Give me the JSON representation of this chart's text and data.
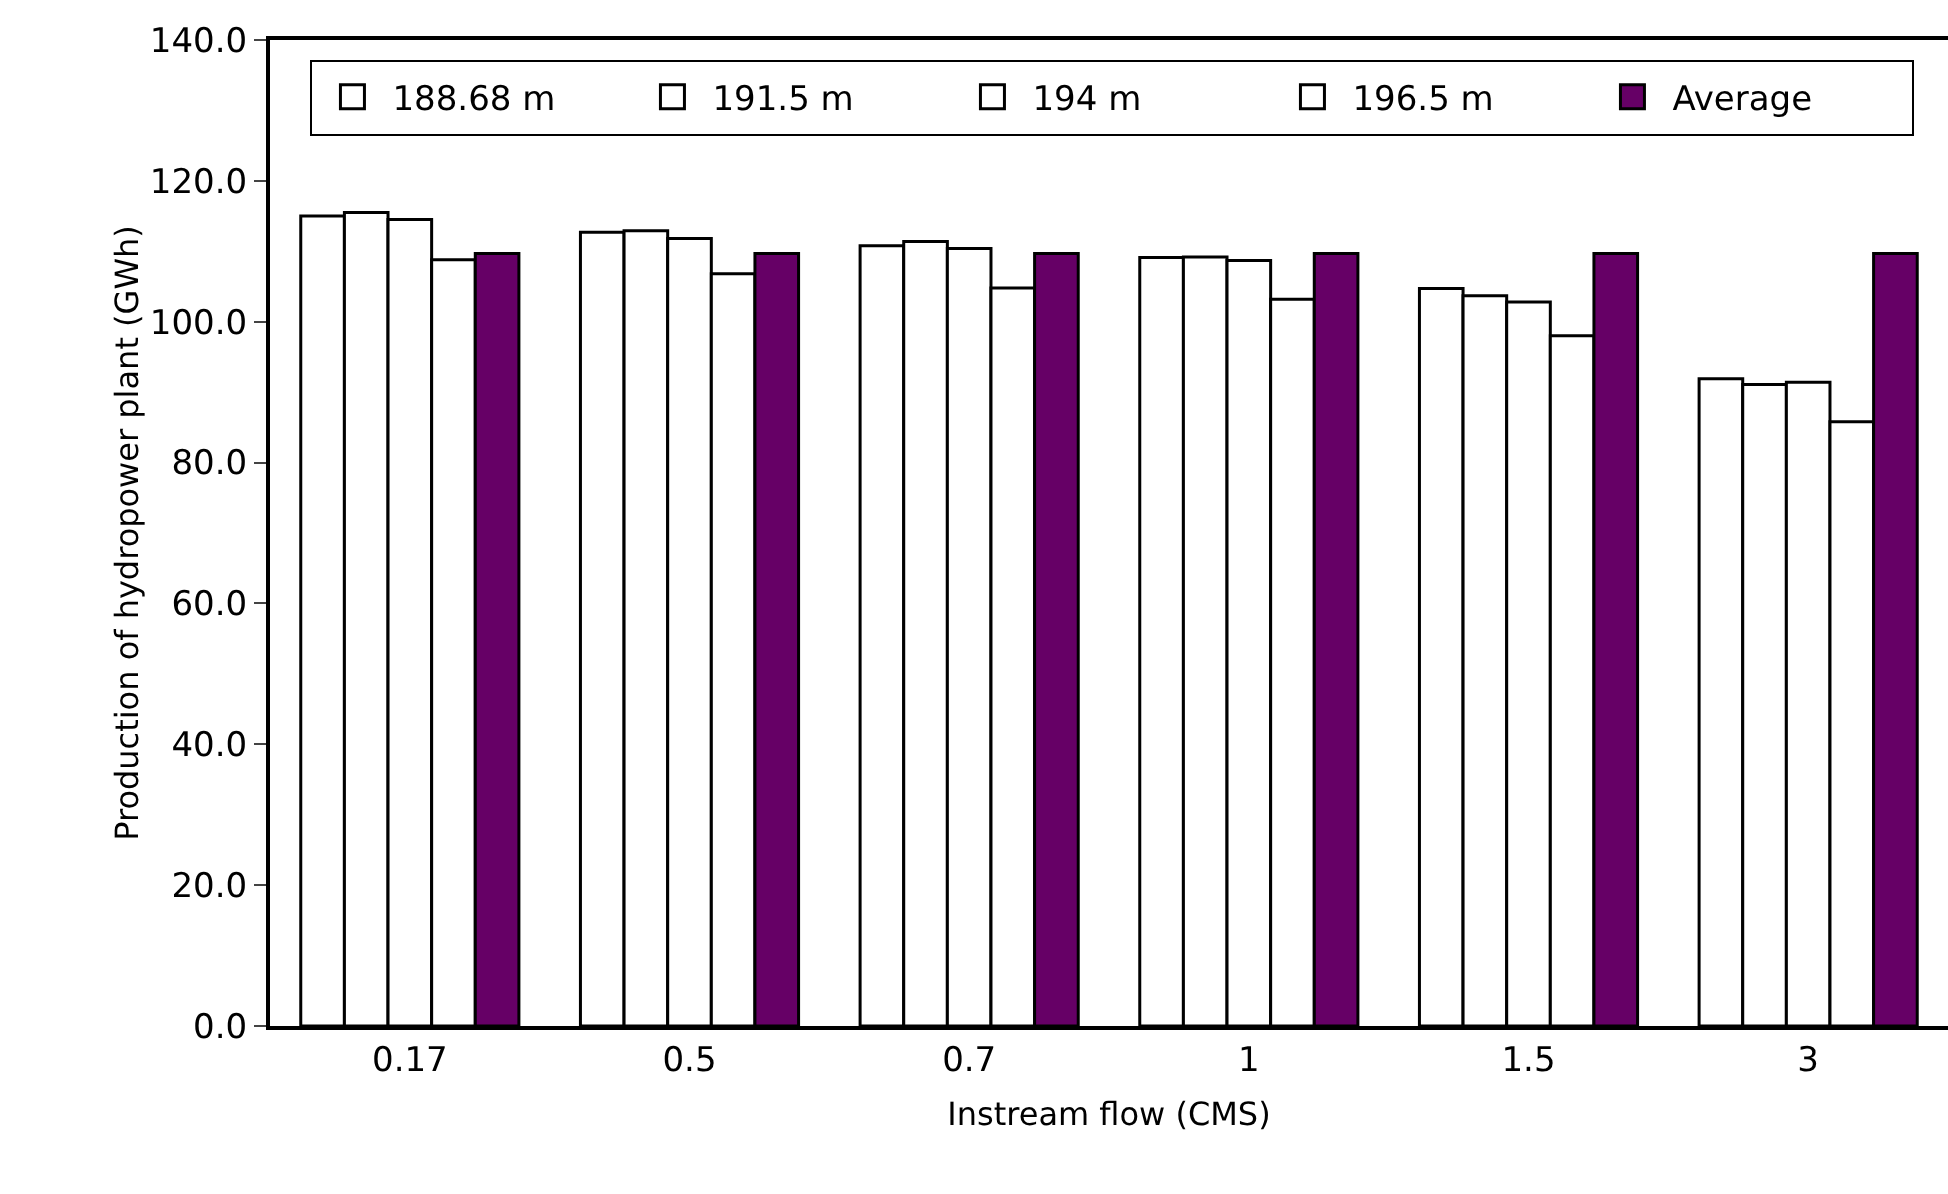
{
  "chart_data": {
    "type": "bar",
    "xlabel": "Instream flow (CMS)",
    "ylabel": "Production of hydropower plant (GWh)",
    "categories": [
      "0.17",
      "0.5",
      "0.7",
      "1",
      "1.5",
      "3"
    ],
    "series": [
      {
        "name": "188.68 m",
        "color": "#ffffff",
        "values": [
          115.0,
          112.7,
          110.8,
          109.1,
          104.7,
          91.9
        ]
      },
      {
        "name": "191.5 m",
        "color": "#ffffff",
        "values": [
          115.5,
          112.9,
          111.4,
          109.2,
          103.7,
          91.1
        ]
      },
      {
        "name": "194 m",
        "color": "#ffffff",
        "values": [
          114.5,
          111.8,
          110.4,
          108.7,
          102.8,
          91.4
        ]
      },
      {
        "name": "196.5 m",
        "color": "#ffffff",
        "values": [
          108.8,
          106.8,
          104.8,
          103.2,
          98.0,
          85.8
        ]
      },
      {
        "name": "Average",
        "color": "#660066",
        "values": [
          109.7,
          109.7,
          109.7,
          109.7,
          109.7,
          109.7
        ]
      }
    ],
    "ylim": [
      0,
      140
    ],
    "yticks": [
      {
        "value": 0,
        "label": "0.0"
      },
      {
        "value": 20,
        "label": "20.0"
      },
      {
        "value": 40,
        "label": "40.0"
      },
      {
        "value": 60,
        "label": "60.0"
      },
      {
        "value": 80,
        "label": "80.0"
      },
      {
        "value": 100,
        "label": "100.0"
      },
      {
        "value": 120,
        "label": "120.0"
      },
      {
        "value": 140,
        "label": "140.0"
      }
    ],
    "grid": false,
    "legend": "top right"
  }
}
